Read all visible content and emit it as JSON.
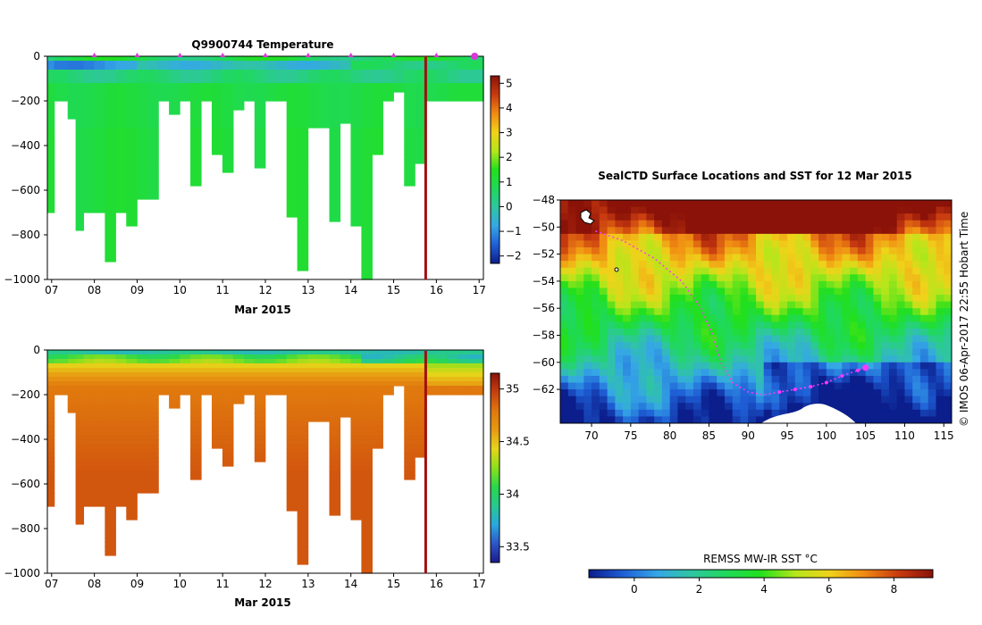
{
  "colors": {
    "temperature_cmap": [
      "#0b1e8c",
      "#1f5fd6",
      "#35a7e6",
      "#2fc6a0",
      "#1fd95a",
      "#22e01b",
      "#b5e61b",
      "#f0d21a",
      "#f08a12",
      "#c83a10",
      "#8a1208"
    ],
    "salinity_cmap": [
      "#1a1a8a",
      "#2d56c8",
      "#29a9e0",
      "#27c98e",
      "#2ad84a",
      "#8be01b",
      "#e6d61a",
      "#e89a12",
      "#e0780e",
      "#c8400e",
      "#8a120a"
    ],
    "profile_marker": "#d838d8",
    "current_line": "#a01010",
    "track": "#ff38ff"
  },
  "chart_data": [
    {
      "type": "heatmap",
      "title": "Q9900744  Temperature",
      "xlabel": "Mar 2015",
      "ylabel": "",
      "x_ticks": [
        "07",
        "08",
        "09",
        "10",
        "11",
        "12",
        "13",
        "14",
        "15",
        "16",
        "17"
      ],
      "y_ticks": [
        "0",
        "−200",
        "−400",
        "−600",
        "−800",
        "−1000"
      ],
      "ylim": [
        -1000,
        0
      ],
      "colorbar": {
        "ticks": [
          "5",
          "4",
          "3",
          "2",
          "1",
          "0",
          "−1",
          "−2"
        ],
        "range": [
          -2.3,
          5.3
        ]
      },
      "profile_markers_days": [
        8,
        9,
        10,
        11,
        12,
        13,
        14,
        15,
        16,
        17
      ],
      "current_time_day": 15.75,
      "profile_days": [
        6.87,
        7.25,
        7.5,
        7.62,
        7.87,
        8.12,
        8.37,
        8.62,
        8.87,
        9.12,
        9.37,
        9.62,
        9.87,
        10.12,
        10.37,
        10.62,
        10.87,
        11.12,
        11.37,
        11.62,
        11.87,
        12.12,
        12.37,
        12.62,
        12.87,
        13.12,
        13.37,
        13.62,
        13.87,
        14.12,
        14.37,
        14.62,
        14.87,
        15.12,
        15.37,
        15.62,
        15.87,
        16.12,
        16.37,
        16.62,
        16.87
      ],
      "profile_max_depths": [
        -685,
        -200,
        -280,
        -780,
        -695,
        -700,
        -905,
        -700,
        -750,
        -635,
        -640,
        -200,
        -255,
        -200,
        -565,
        -200,
        -440,
        -515,
        -235,
        -200,
        -500,
        -200,
        -200,
        -710,
        -955,
        -310,
        -310,
        -740,
        -300,
        -760,
        -1000,
        -425,
        -200,
        -155,
        -565,
        -480,
        -200,
        -200,
        -200,
        -200,
        -200
      ]
    },
    {
      "type": "heatmap",
      "title": "",
      "xlabel": "Mar 2015",
      "ylabel": "",
      "x_ticks": [
        "07",
        "08",
        "09",
        "10",
        "11",
        "12",
        "13",
        "14",
        "15",
        "16",
        "17"
      ],
      "y_ticks": [
        "0",
        "−200",
        "−400",
        "−600",
        "−800",
        "−1000"
      ],
      "ylim": [
        -1000,
        0
      ],
      "colorbar": {
        "ticks": [
          "35",
          "34.5",
          "34",
          "33.5"
        ],
        "range": [
          33.35,
          35.15
        ]
      },
      "current_time_day": 15.75,
      "profile_days": [
        6.87,
        7.25,
        7.5,
        7.62,
        7.87,
        8.12,
        8.37,
        8.62,
        8.87,
        9.12,
        9.37,
        9.62,
        9.87,
        10.12,
        10.37,
        10.62,
        10.87,
        11.12,
        11.37,
        11.62,
        11.87,
        12.12,
        12.37,
        12.62,
        12.87,
        13.12,
        13.37,
        13.62,
        13.87,
        14.12,
        14.37,
        14.62,
        14.87,
        15.12,
        15.37,
        15.62,
        15.87,
        16.12,
        16.37,
        16.62,
        16.87
      ],
      "profile_max_depths": [
        -685,
        -200,
        -280,
        -780,
        -695,
        -700,
        -905,
        -700,
        -750,
        -635,
        -640,
        -200,
        -255,
        -200,
        -565,
        -200,
        -440,
        -515,
        -235,
        -200,
        -500,
        -200,
        -200,
        -710,
        -955,
        -310,
        -310,
        -740,
        -300,
        -760,
        -1000,
        -425,
        -200,
        -155,
        -565,
        -480,
        -200,
        -200,
        -200,
        -200,
        -200
      ]
    },
    {
      "type": "heatmap",
      "title": "SealCTD Surface Locations and SST for 12 Mar 2015",
      "xlabel": "",
      "ylabel": "",
      "x_ticks": [
        "70",
        "75",
        "80",
        "85",
        "90",
        "95",
        "100",
        "105",
        "110",
        "115"
      ],
      "y_ticks": [
        "−48",
        "−50",
        "−52",
        "−54",
        "−56",
        "−58",
        "−60",
        "−62"
      ],
      "xlim": [
        66,
        116
      ],
      "ylim": [
        -64.5,
        -48
      ],
      "colorbar": {
        "label": "REMSS MW-IR SST °C",
        "ticks": [
          "0",
          "2",
          "4",
          "6",
          "8"
        ],
        "range": [
          -1.4,
          9.2
        ]
      },
      "track_lon": [
        70.5,
        74,
        78,
        81.5,
        84,
        85.5,
        86.5,
        88,
        90,
        92,
        94,
        96,
        98,
        100,
        102,
        104,
        105
      ],
      "track_lat": [
        -50.3,
        -51,
        -52.3,
        -54,
        -56,
        -58,
        -60,
        -61.5,
        -62.2,
        -62.4,
        -62.2,
        -62,
        -61.8,
        -61.5,
        -61,
        -60.6,
        -60.4
      ],
      "current_position": {
        "lon": 105,
        "lat": -60.4
      }
    }
  ],
  "footer": {
    "credit": "© IMOS 06-Apr-2017 22:55 Hobart Time"
  }
}
